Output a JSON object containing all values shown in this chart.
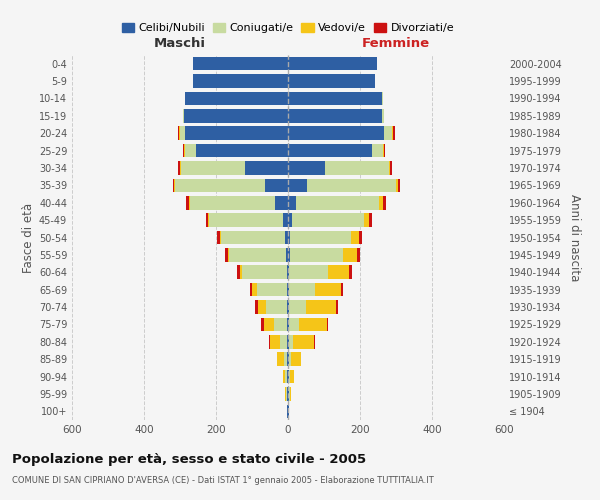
{
  "age_groups": [
    "100+",
    "95-99",
    "90-94",
    "85-89",
    "80-84",
    "75-79",
    "70-74",
    "65-69",
    "60-64",
    "55-59",
    "50-54",
    "45-49",
    "40-44",
    "35-39",
    "30-34",
    "25-29",
    "20-24",
    "15-19",
    "10-14",
    "5-9",
    "0-4"
  ],
  "birth_years": [
    "≤ 1904",
    "1905-1909",
    "1910-1914",
    "1915-1919",
    "1920-1924",
    "1925-1929",
    "1930-1934",
    "1935-1939",
    "1940-1944",
    "1945-1949",
    "1950-1954",
    "1955-1959",
    "1960-1964",
    "1965-1969",
    "1970-1974",
    "1975-1979",
    "1980-1984",
    "1985-1989",
    "1990-1994",
    "1995-1999",
    "2000-2004"
  ],
  "males": {
    "celibi": [
      2,
      2,
      2,
      2,
      2,
      2,
      2,
      2,
      3,
      5,
      8,
      15,
      35,
      65,
      120,
      255,
      285,
      290,
      285,
      265,
      265
    ],
    "coniugati": [
      1,
      3,
      5,
      10,
      20,
      38,
      58,
      85,
      125,
      158,
      178,
      205,
      238,
      248,
      178,
      32,
      16,
      2,
      0,
      0,
      0
    ],
    "vedovi": [
      1,
      3,
      6,
      18,
      28,
      28,
      22,
      12,
      6,
      4,
      3,
      3,
      3,
      3,
      3,
      2,
      2,
      0,
      0,
      0,
      0
    ],
    "divorziati": [
      0,
      0,
      0,
      0,
      3,
      6,
      9,
      6,
      9,
      9,
      9,
      6,
      6,
      4,
      4,
      3,
      3,
      0,
      0,
      0,
      0
    ]
  },
  "females": {
    "nubili": [
      2,
      2,
      2,
      2,
      2,
      2,
      2,
      2,
      3,
      5,
      6,
      12,
      22,
      52,
      102,
      232,
      268,
      262,
      262,
      242,
      248
    ],
    "coniugate": [
      1,
      3,
      4,
      7,
      12,
      28,
      48,
      72,
      108,
      148,
      168,
      198,
      232,
      248,
      178,
      32,
      22,
      6,
      2,
      0,
      0
    ],
    "vedove": [
      1,
      4,
      10,
      28,
      58,
      78,
      82,
      72,
      58,
      38,
      22,
      14,
      10,
      6,
      4,
      3,
      3,
      0,
      0,
      0,
      0
    ],
    "divorziate": [
      0,
      0,
      0,
      0,
      3,
      4,
      6,
      6,
      9,
      9,
      9,
      9,
      9,
      6,
      6,
      3,
      3,
      0,
      0,
      0,
      0
    ]
  },
  "colors": {
    "celibi": "#2e5fa3",
    "coniugati": "#c8dba0",
    "vedovi": "#f5c518",
    "divorziati": "#cc1111"
  },
  "xlim": 600,
  "title": "Popolazione per età, sesso e stato civile - 2005",
  "subtitle": "COMUNE DI SAN CIPRIANO D'AVERSA (CE) - Dati ISTAT 1° gennaio 2005 - Elaborazione TUTTITALIA.IT",
  "ylabel_left": "Fasce di età",
  "ylabel_right": "Anni di nascita",
  "legend_labels": [
    "Celibi/Nubili",
    "Coniugati/e",
    "Vedovi/e",
    "Divorziati/e"
  ],
  "bg_color": "#f5f5f5",
  "maschi_color": "#333333",
  "femmine_color": "#cc2222"
}
